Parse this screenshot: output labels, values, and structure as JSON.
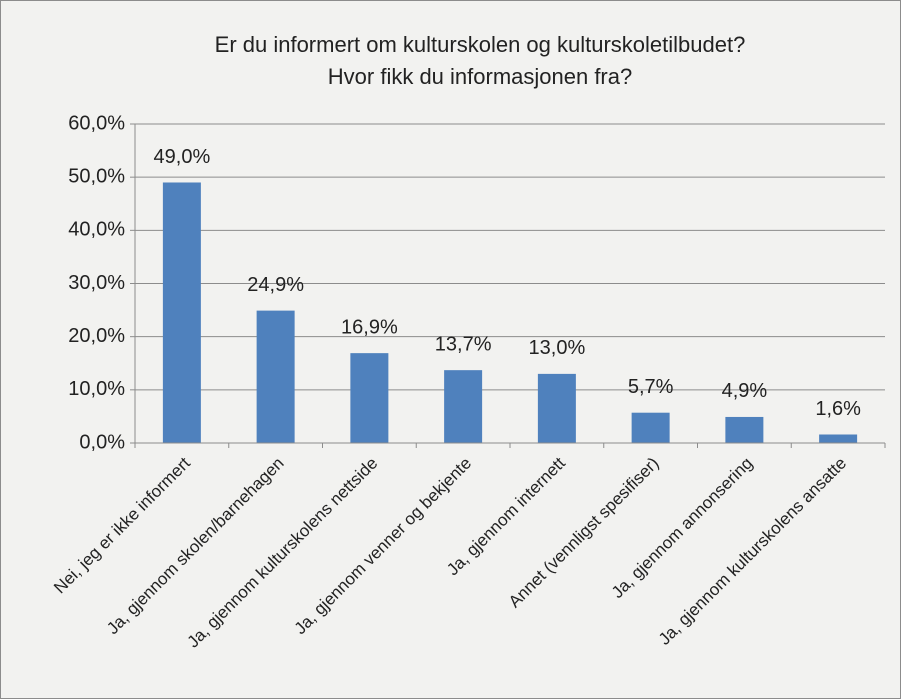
{
  "chart_data": {
    "type": "bar",
    "title": [
      "Er du informert om kulturskolen og kulturskoletilbudet?",
      "Hvor fikk du informasjonen fra?"
    ],
    "categories": [
      "Nei, jeg er ikke informert",
      "Ja, gjennom skolen/barnehagen",
      "Ja, gjennom kulturskolens nettside",
      "Ja, gjennom venner og bekjente",
      "Ja, gjennom internett",
      "Annet (vennligst spesifiser)",
      "Ja, gjennom annonsering",
      "Ja, gjennom kulturskolens ansatte"
    ],
    "values": [
      49.0,
      24.9,
      16.9,
      13.7,
      13.0,
      5.7,
      4.9,
      1.6
    ],
    "value_labels": [
      "49,0%",
      "24,9%",
      "16,9%",
      "13,7%",
      "13,0%",
      "5,7%",
      "4,9%",
      "1,6%"
    ],
    "color": "#4f81bd",
    "ylim": [
      0,
      60
    ],
    "yticks": [
      {
        "value": 0,
        "label": "0,0%"
      },
      {
        "value": 10,
        "label": "10,0%"
      },
      {
        "value": 20,
        "label": "20,0%"
      },
      {
        "value": 30,
        "label": "30,0%"
      },
      {
        "value": 40,
        "label": "40,0%"
      },
      {
        "value": 50,
        "label": "50,0%"
      },
      {
        "value": 60,
        "label": "60,0%"
      }
    ],
    "grid": true
  }
}
